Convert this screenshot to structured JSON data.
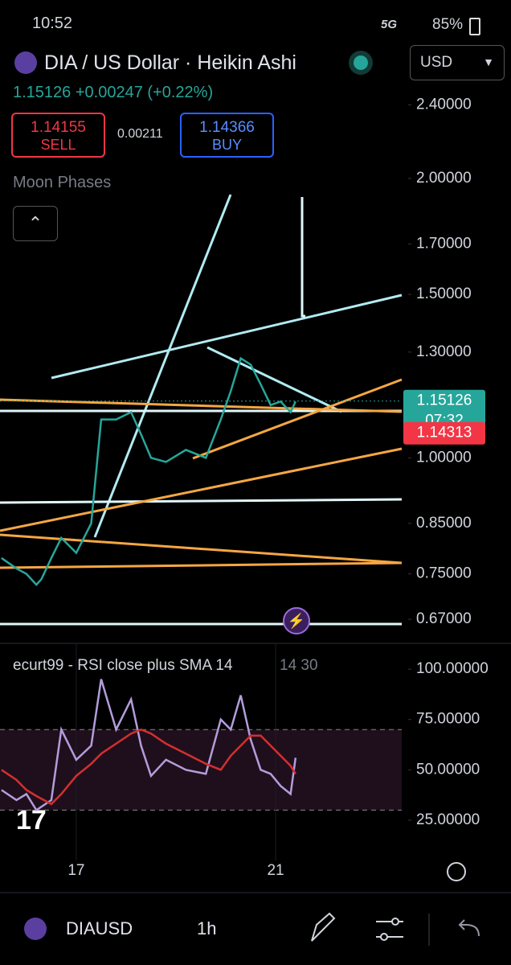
{
  "status_bar": {
    "time": "10:52",
    "network": "5G",
    "battery": "85%"
  },
  "header": {
    "title": "DIA / US Dollar · Heikin Ashi",
    "currency": "USD",
    "price": "1.15126",
    "change": "+0.00247",
    "change_pct": "(+0.22%)"
  },
  "trade": {
    "sell_price": "1.14155",
    "sell_label": "SELL",
    "spread": "0.00211",
    "buy_price": "1.14366",
    "buy_label": "BUY"
  },
  "indicator": "Moon Phases",
  "chart_data": [
    {
      "type": "line",
      "log_scale": true,
      "xlim": [
        15.47,
        23.53
      ],
      "ylim": [
        0.644,
        2.55
      ],
      "yticks": [
        {
          "value": 2.4,
          "label": "2.40000"
        },
        {
          "value": 2.0,
          "label": "2.00000"
        },
        {
          "value": 1.7,
          "label": "1.70000"
        },
        {
          "value": 1.5,
          "label": "1.50000"
        },
        {
          "value": 1.3,
          "label": "1.30000"
        },
        {
          "value": 1.0,
          "label": "1.00000"
        },
        {
          "value": 0.85,
          "label": "0.85000"
        },
        {
          "value": 0.75,
          "label": "0.75000"
        },
        {
          "value": 0.67,
          "label": "0.67000"
        }
      ],
      "x": [
        15.5,
        15.8,
        16.0,
        16.2,
        16.3,
        16.5,
        16.7,
        17.0,
        17.3,
        17.5,
        17.8,
        18.1,
        18.3,
        18.5,
        18.8,
        19.2,
        19.6,
        19.9,
        20.1,
        20.3,
        20.5,
        20.7,
        20.9,
        21.1,
        21.3,
        21.4
      ],
      "series": [
        {
          "color": "#26a69a",
          "values": [
            0.78,
            0.76,
            0.75,
            0.73,
            0.74,
            0.78,
            0.82,
            0.79,
            0.85,
            1.1,
            1.1,
            1.12,
            1.06,
            1.0,
            0.99,
            1.02,
            1.0,
            1.1,
            1.18,
            1.28,
            1.26,
            1.2,
            1.14,
            1.15,
            1.12,
            1.15
          ]
        }
      ],
      "tags": [
        {
          "value": 1.15126,
          "label": "1.15126",
          "color": "#26a69a"
        },
        {
          "value": 1.14313,
          "label": "1.14313",
          "color": "#f23645"
        }
      ],
      "countdown": "07:32"
    },
    {
      "type": "line",
      "title": "ecurt99 - RSI close plus SMA 14",
      "params": "14 30",
      "xlim": [
        15.47,
        23.53
      ],
      "ylim": [
        13,
        112.8
      ],
      "yticks": [
        {
          "value": 100,
          "label": "100.00000"
        },
        {
          "value": 75,
          "label": "75.00000"
        },
        {
          "value": 50,
          "label": "50.00000"
        },
        {
          "value": 25,
          "label": "25.00000"
        }
      ],
      "levels": [
        30,
        70
      ],
      "xticks": [
        17,
        21
      ],
      "x": [
        15.5,
        15.8,
        16.0,
        16.2,
        16.5,
        16.7,
        17.0,
        17.3,
        17.5,
        17.8,
        18.1,
        18.3,
        18.5,
        18.8,
        19.2,
        19.6,
        19.9,
        20.1,
        20.3,
        20.5,
        20.7,
        20.9,
        21.1,
        21.3,
        21.4
      ],
      "series": [
        {
          "color": "#b39ddb",
          "values": [
            40,
            35,
            38,
            30,
            35,
            70,
            55,
            62,
            95,
            70,
            85,
            62,
            47,
            55,
            50,
            48,
            75,
            70,
            87,
            65,
            50,
            48,
            42,
            38,
            56
          ]
        },
        {
          "color": "#d32f2f",
          "values": [
            50,
            45,
            40,
            37,
            33,
            38,
            47,
            53,
            58,
            63,
            68,
            70,
            68,
            63,
            58,
            53,
            50,
            57,
            62,
            67,
            67,
            62,
            57,
            52,
            48
          ]
        }
      ]
    }
  ],
  "bottom_bar": {
    "symbol": "DIAUSD",
    "interval": "1h"
  }
}
